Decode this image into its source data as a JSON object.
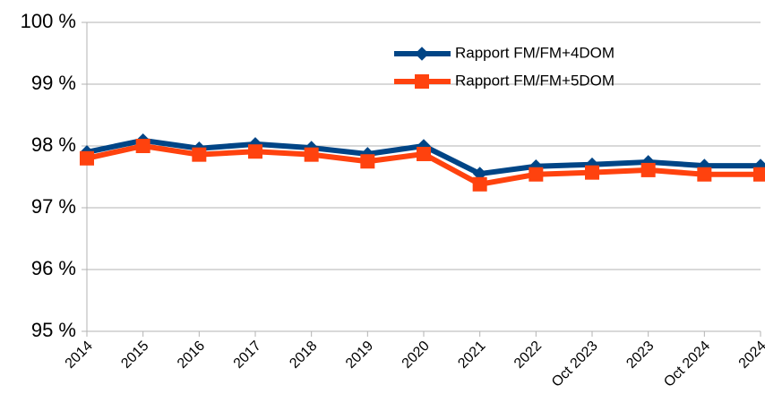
{
  "chart_data": {
    "type": "line",
    "categories": [
      "2014",
      "2015",
      "2016",
      "2017",
      "2018",
      "2019",
      "2020",
      "2021",
      "2022",
      "Oct 2023",
      "2023",
      "Oct 2024",
      "2024"
    ],
    "series": [
      {
        "name": "Rapport FM/FM+4DOM",
        "color": "#004586",
        "marker": "diamond",
        "values": [
          97.9,
          98.09,
          97.96,
          98.03,
          97.97,
          97.87,
          98.0,
          97.55,
          97.67,
          97.7,
          97.74,
          97.68,
          97.68
        ]
      },
      {
        "name": "Rapport FM/FM+5DOM",
        "color": "#ff420e",
        "marker": "square",
        "values": [
          97.8,
          98.0,
          97.86,
          97.91,
          97.86,
          97.75,
          97.87,
          97.38,
          97.54,
          97.57,
          97.61,
          97.54,
          97.54
        ]
      }
    ],
    "ylim": [
      95,
      100
    ],
    "yticks": [
      {
        "value": 95,
        "label": "95 %"
      },
      {
        "value": 96,
        "label": "96 %"
      },
      {
        "value": 97,
        "label": "97 %"
      },
      {
        "value": 98,
        "label": "98 %"
      },
      {
        "value": 99,
        "label": "99 %"
      },
      {
        "value": 100,
        "label": "100 %"
      }
    ],
    "grid": true,
    "legend": "top-right"
  }
}
